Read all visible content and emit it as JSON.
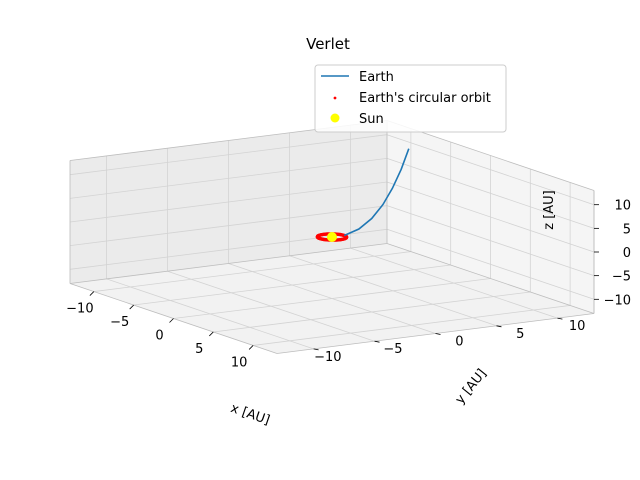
{
  "chart_data": {
    "type": "line",
    "projection": "3d",
    "title": "Verlet",
    "xlabel": "x [AU]",
    "ylabel": "y [AU]",
    "zlabel": "z [AU]",
    "xlim": [
      -13,
      13
    ],
    "ylim": [
      -13,
      13
    ],
    "zlim": [
      -13,
      13
    ],
    "xticks": [
      "−10",
      "−5",
      "0",
      "5",
      "10"
    ],
    "yticks": [
      "−10",
      "−5",
      "0",
      "5",
      "10"
    ],
    "zticks": [
      "−10",
      "−5",
      "0",
      "5",
      "10"
    ],
    "grid": true,
    "legend_position": "top-right",
    "series": [
      {
        "name": "Earth",
        "kind": "line",
        "color": "#1f77b4",
        "x": [
          0,
          -0.6,
          -1.6,
          -2.8,
          -4.2,
          -5.7,
          -7.2
        ],
        "y": [
          1.0,
          2.6,
          4.3,
          6.0,
          7.7,
          9.4,
          11.0
        ],
        "z": [
          0,
          0.5,
          1.6,
          3.3,
          5.4,
          8.0,
          11.0
        ]
      },
      {
        "name": "Earth's circular orbit",
        "kind": "scatter",
        "color": "#ff0000",
        "radius": 1,
        "z": 0
      },
      {
        "name": "Sun",
        "kind": "scatter",
        "color": "#ffff00",
        "x": [
          0
        ],
        "y": [
          0
        ],
        "z": [
          0
        ]
      }
    ]
  }
}
